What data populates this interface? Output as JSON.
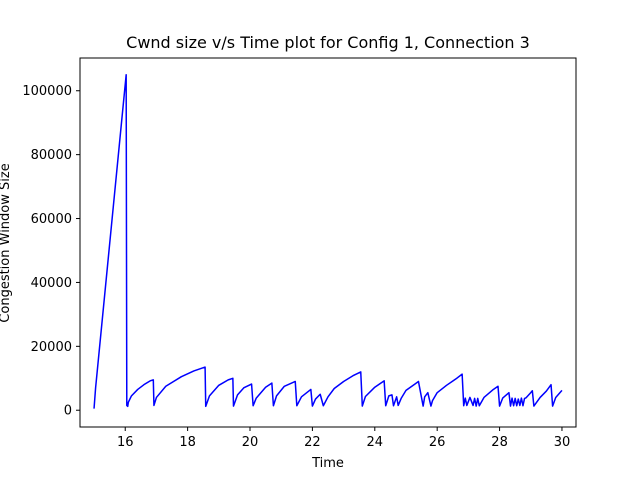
{
  "chart_data": {
    "type": "line",
    "title": "Cwnd size v/s Time plot for Config 1, Connection 3",
    "xlabel": "Time",
    "ylabel": "Congestion Window Size",
    "xlim": [
      14.55,
      30.45
    ],
    "ylim": [
      -5250,
      110250
    ],
    "xticks": [
      16,
      18,
      20,
      22,
      24,
      26,
      28,
      30
    ],
    "yticks": [
      0,
      20000,
      40000,
      60000,
      80000,
      100000
    ],
    "grid": false,
    "line_color": "#0000ff",
    "series": [
      {
        "name": "",
        "x": [
          15.0,
          15.05,
          16.02,
          16.03,
          16.05,
          16.08,
          16.1,
          16.2,
          16.4,
          16.6,
          16.8,
          16.9,
          16.92,
          17.0,
          17.3,
          17.8,
          18.2,
          18.56,
          18.58,
          18.7,
          19.0,
          19.3,
          19.45,
          19.47,
          19.6,
          19.8,
          20.05,
          20.1,
          20.2,
          20.5,
          20.7,
          20.75,
          20.85,
          21.1,
          21.45,
          21.5,
          21.65,
          21.95,
          22.0,
          22.1,
          22.25,
          22.35,
          22.5,
          22.7,
          23.0,
          23.3,
          23.55,
          23.6,
          23.7,
          24.0,
          24.3,
          24.35,
          24.45,
          24.55,
          24.6,
          24.7,
          24.75,
          24.85,
          25.0,
          25.3,
          25.4,
          25.55,
          25.6,
          25.7,
          25.8,
          25.85,
          26.0,
          26.3,
          26.6,
          26.8,
          26.85,
          26.9,
          26.95,
          27.05,
          27.15,
          27.2,
          27.25,
          27.3,
          27.35,
          27.5,
          27.8,
          27.95,
          28.0,
          28.1,
          28.3,
          28.35,
          28.4,
          28.45,
          28.5,
          28.55,
          28.6,
          28.65,
          28.7,
          28.75,
          28.8,
          28.85,
          29.0,
          29.05,
          29.1,
          29.3,
          29.5,
          29.65,
          29.7,
          29.8,
          30.0
        ],
        "y": [
          500,
          7000,
          104000,
          105000,
          1500,
          1200,
          2500,
          4500,
          6500,
          8000,
          9200,
          9500,
          1500,
          4000,
          7500,
          10500,
          12300,
          13500,
          1200,
          4500,
          7800,
          9500,
          10000,
          1300,
          4800,
          7000,
          8200,
          1400,
          3800,
          7200,
          8500,
          1400,
          4500,
          7500,
          9000,
          1400,
          4200,
          6500,
          1300,
          3500,
          5000,
          1400,
          4200,
          6800,
          9000,
          10800,
          12000,
          1300,
          4300,
          7200,
          9200,
          1400,
          4500,
          4800,
          1400,
          4200,
          1500,
          3800,
          6200,
          8300,
          9000,
          1300,
          4200,
          5500,
          1300,
          3000,
          5500,
          7800,
          9800,
          11300,
          1400,
          3800,
          1500,
          4000,
          1500,
          3700,
          1300,
          3700,
          1400,
          4000,
          6500,
          7500,
          1300,
          3800,
          5500,
          1300,
          3800,
          1400,
          3700,
          1400,
          3500,
          1500,
          3800,
          1400,
          3700,
          3900,
          5500,
          6100,
          1300,
          4000,
          6000,
          8000,
          1300,
          4000,
          6200
        ]
      }
    ]
  }
}
